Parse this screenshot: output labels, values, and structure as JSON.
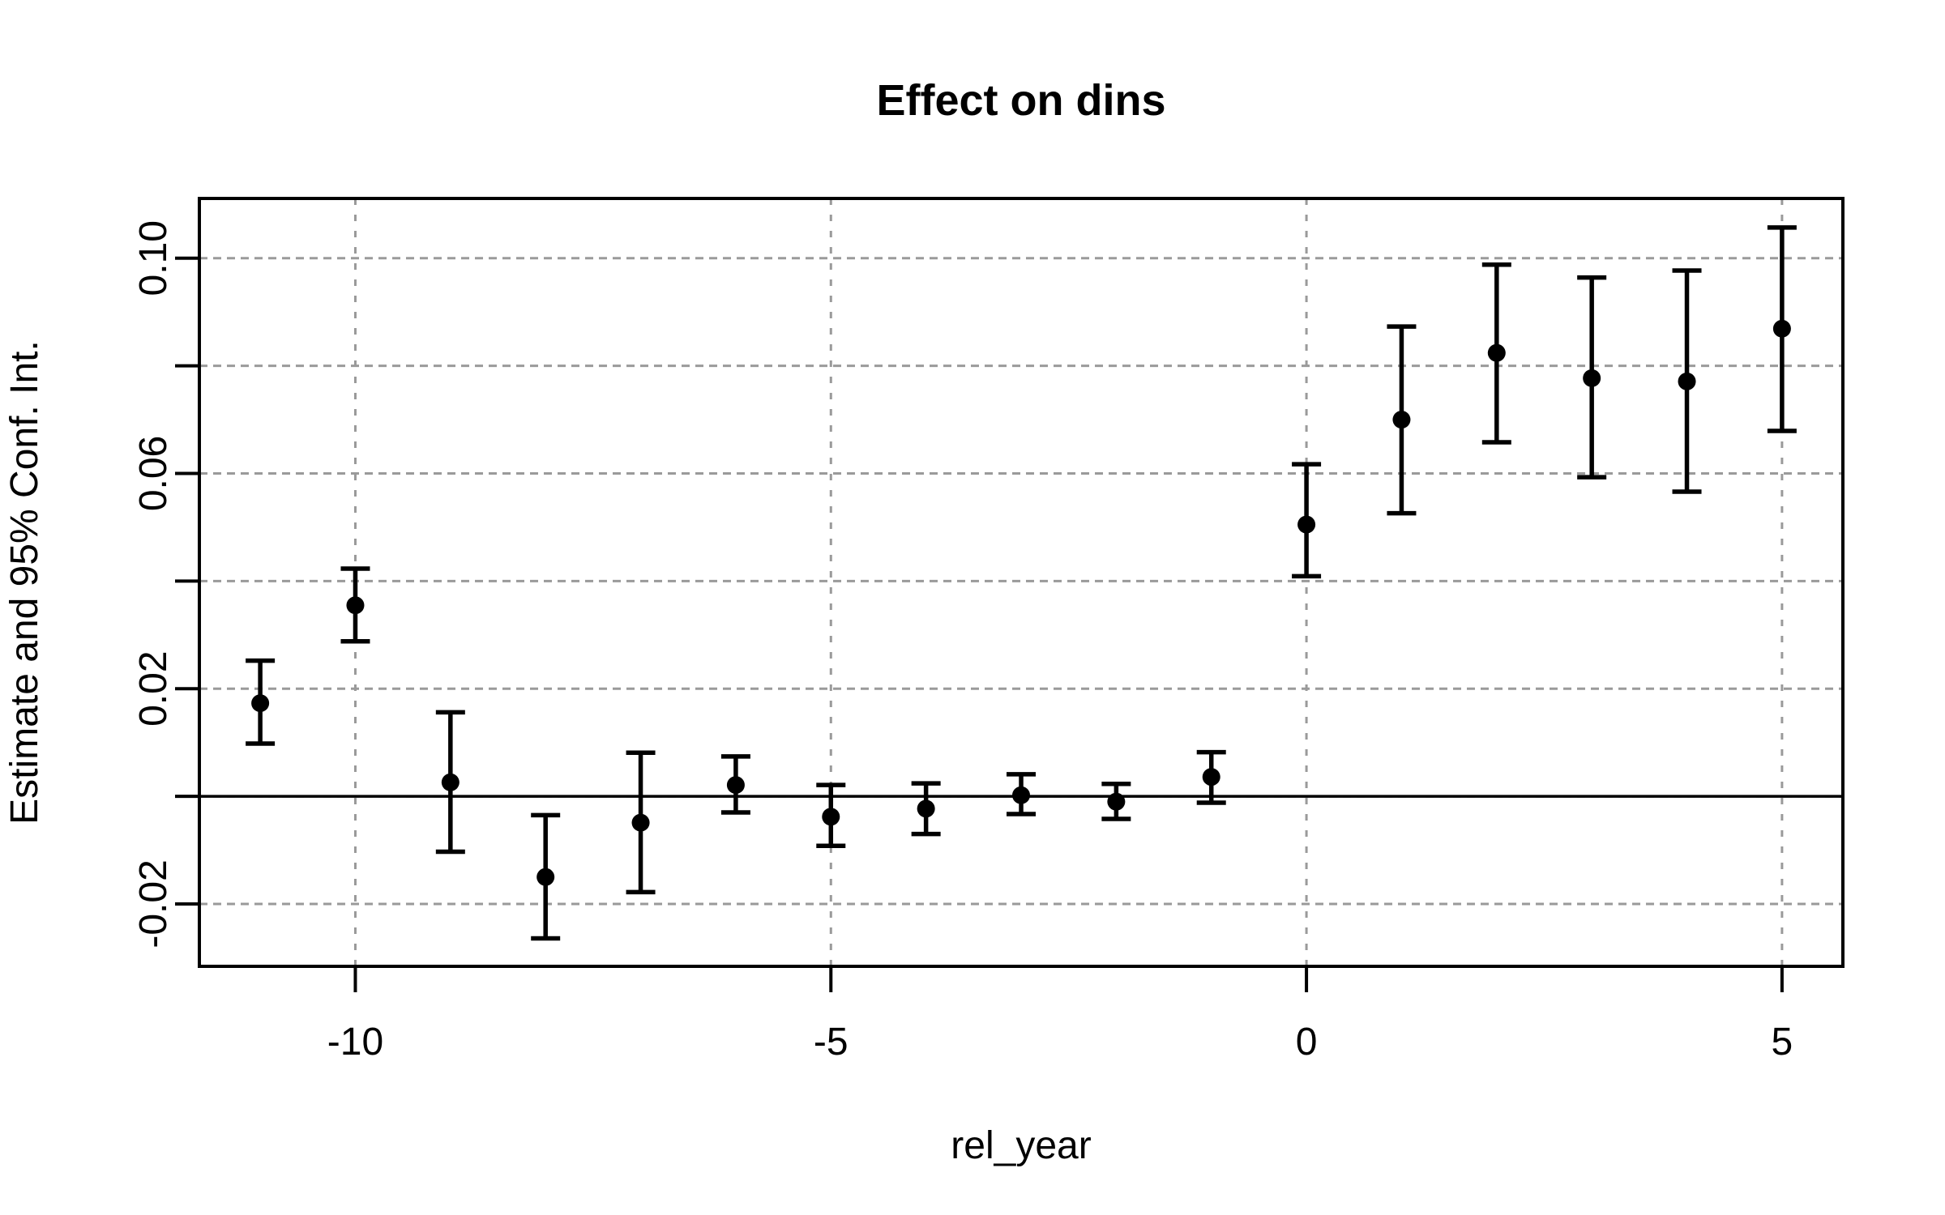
{
  "title": "Effect on dins",
  "x_axis": {
    "label": "rel_year",
    "ticks": [
      "-10",
      "-5",
      "0",
      "5"
    ],
    "tick_values": [
      -10,
      -5,
      0,
      5
    ]
  },
  "y_axis": {
    "label": "Estimate and 95% Conf. Int.",
    "ticks": [
      "-0.02",
      "0.02",
      "0.06",
      "0.10"
    ],
    "tick_values": [
      -0.02,
      0.02,
      0.06,
      0.1
    ],
    "grid_values": [
      -0.02,
      0,
      0.02,
      0.04,
      0.06,
      0.08,
      0.1
    ]
  },
  "reference_line_y": 0,
  "colors": {
    "foreground": "#000000",
    "background": "#ffffff",
    "grid": "#9a9a9a"
  },
  "chart_data": {
    "type": "scatter",
    "title": "Effect on dins",
    "xlabel": "rel_year",
    "ylabel": "Estimate and 95% Conf. Int.",
    "legend": "none",
    "grid": "dashed",
    "error_bars": "95% confidence interval",
    "xlim": [
      -11.64,
      5.64
    ],
    "ylim": [
      -0.0316,
      0.1111
    ],
    "x_ticks": [
      -10,
      -5,
      0,
      5
    ],
    "y_ticks": [
      -0.02,
      0.02,
      0.06,
      0.1
    ],
    "points": [
      {
        "x": -11,
        "estimate": 0.0173,
        "ci_low": 0.0098,
        "ci_high": 0.0252
      },
      {
        "x": -10,
        "estimate": 0.0355,
        "ci_low": 0.0288,
        "ci_high": 0.0423
      },
      {
        "x": -9,
        "estimate": 0.0026,
        "ci_low": -0.0103,
        "ci_high": 0.0156
      },
      {
        "x": -8,
        "estimate": -0.015,
        "ci_low": -0.0264,
        "ci_high": -0.0035
      },
      {
        "x": -7,
        "estimate": -0.0049,
        "ci_low": -0.0178,
        "ci_high": 0.0081
      },
      {
        "x": -6,
        "estimate": 0.0021,
        "ci_low": -0.003,
        "ci_high": 0.0074
      },
      {
        "x": -5,
        "estimate": -0.0038,
        "ci_low": -0.0092,
        "ci_high": 0.0021
      },
      {
        "x": -4,
        "estimate": -0.0023,
        "ci_low": -0.007,
        "ci_high": 0.0024
      },
      {
        "x": -3,
        "estimate": 0.0002,
        "ci_low": -0.0033,
        "ci_high": 0.0041
      },
      {
        "x": -2,
        "estimate": -0.001,
        "ci_low": -0.0042,
        "ci_high": 0.0023
      },
      {
        "x": -1,
        "estimate": 0.0036,
        "ci_low": -0.0012,
        "ci_high": 0.0082
      },
      {
        "x": 0,
        "estimate": 0.0505,
        "ci_low": 0.0409,
        "ci_high": 0.0617
      },
      {
        "x": 1,
        "estimate": 0.07,
        "ci_low": 0.0526,
        "ci_high": 0.0873
      },
      {
        "x": 2,
        "estimate": 0.0824,
        "ci_low": 0.0658,
        "ci_high": 0.0988
      },
      {
        "x": 3,
        "estimate": 0.0777,
        "ci_low": 0.0593,
        "ci_high": 0.0964
      },
      {
        "x": 4,
        "estimate": 0.0771,
        "ci_low": 0.0566,
        "ci_high": 0.0977
      },
      {
        "x": 5,
        "estimate": 0.0869,
        "ci_low": 0.0679,
        "ci_high": 0.1057
      }
    ]
  }
}
